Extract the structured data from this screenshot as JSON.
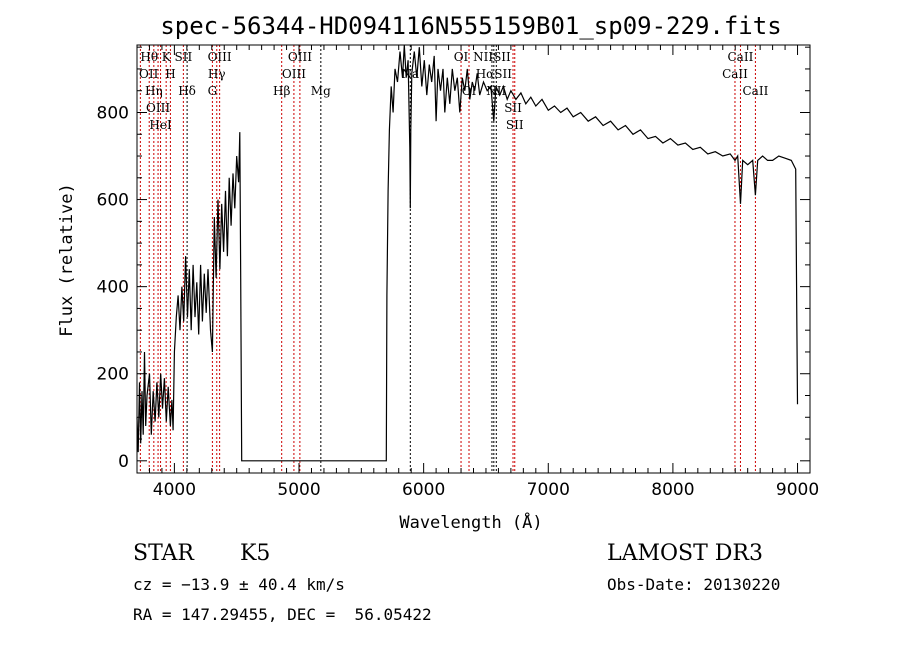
{
  "chart_data": {
    "type": "line",
    "title": "spec-56344-HD094116N555159B01_sp09-229.fits",
    "xlabel": "Wavelength (Å)",
    "ylabel": "Flux (relative)",
    "xlim": [
      3700,
      9100
    ],
    "ylim": [
      -28,
      955
    ],
    "xticks": [
      4000,
      5000,
      6000,
      7000,
      8000,
      9000
    ],
    "yticks": [
      0,
      200,
      400,
      600,
      800
    ],
    "grid": false,
    "series": [
      {
        "name": "spectrum",
        "points": [
          [
            3700,
            100
          ],
          [
            3710,
            20
          ],
          [
            3720,
            180
          ],
          [
            3730,
            40
          ],
          [
            3740,
            160
          ],
          [
            3750,
            60
          ],
          [
            3760,
            250
          ],
          [
            3770,
            80
          ],
          [
            3780,
            150
          ],
          [
            3800,
            200
          ],
          [
            3815,
            60
          ],
          [
            3830,
            160
          ],
          [
            3845,
            90
          ],
          [
            3860,
            180
          ],
          [
            3875,
            100
          ],
          [
            3890,
            200
          ],
          [
            3905,
            120
          ],
          [
            3920,
            190
          ],
          [
            3935,
            90
          ],
          [
            3950,
            170
          ],
          [
            3968,
            80
          ],
          [
            3980,
            140
          ],
          [
            3990,
            70
          ],
          [
            4000,
            250
          ],
          [
            4015,
            330
          ],
          [
            4030,
            380
          ],
          [
            4045,
            300
          ],
          [
            4060,
            400
          ],
          [
            4075,
            320
          ],
          [
            4090,
            470
          ],
          [
            4105,
            330
          ],
          [
            4120,
            440
          ],
          [
            4135,
            300
          ],
          [
            4150,
            450
          ],
          [
            4165,
            330
          ],
          [
            4180,
            410
          ],
          [
            4195,
            290
          ],
          [
            4210,
            450
          ],
          [
            4225,
            320
          ],
          [
            4240,
            430
          ],
          [
            4255,
            340
          ],
          [
            4270,
            440
          ],
          [
            4290,
            300
          ],
          [
            4305,
            250
          ],
          [
            4320,
            560
          ],
          [
            4335,
            420
          ],
          [
            4350,
            600
          ],
          [
            4365,
            440
          ],
          [
            4380,
            590
          ],
          [
            4395,
            480
          ],
          [
            4410,
            620
          ],
          [
            4425,
            470
          ],
          [
            4440,
            650
          ],
          [
            4455,
            540
          ],
          [
            4470,
            660
          ],
          [
            4485,
            580
          ],
          [
            4500,
            700
          ],
          [
            4515,
            640
          ],
          [
            4525,
            755
          ],
          [
            4532,
            420
          ],
          [
            4540,
            0
          ],
          [
            5700,
            0
          ],
          [
            5705,
            380
          ],
          [
            5715,
            620
          ],
          [
            5725,
            760
          ],
          [
            5740,
            860
          ],
          [
            5755,
            800
          ],
          [
            5770,
            900
          ],
          [
            5790,
            870
          ],
          [
            5810,
            940
          ],
          [
            5830,
            880
          ],
          [
            5845,
            955
          ],
          [
            5860,
            880
          ],
          [
            5875,
            920
          ],
          [
            5889,
            720
          ],
          [
            5893,
            580
          ],
          [
            5897,
            760
          ],
          [
            5905,
            890
          ],
          [
            5925,
            940
          ],
          [
            5945,
            880
          ],
          [
            5965,
            950
          ],
          [
            5985,
            860
          ],
          [
            6005,
            920
          ],
          [
            6025,
            840
          ],
          [
            6045,
            910
          ],
          [
            6065,
            870
          ],
          [
            6085,
            930
          ],
          [
            6100,
            780
          ],
          [
            6115,
            900
          ],
          [
            6135,
            850
          ],
          [
            6155,
            900
          ],
          [
            6170,
            800
          ],
          [
            6190,
            880
          ],
          [
            6210,
            820
          ],
          [
            6230,
            900
          ],
          [
            6250,
            850
          ],
          [
            6270,
            880
          ],
          [
            6290,
            800
          ],
          [
            6310,
            880
          ],
          [
            6330,
            850
          ],
          [
            6350,
            900
          ],
          [
            6370,
            830
          ],
          [
            6390,
            870
          ],
          [
            6410,
            850
          ],
          [
            6430,
            890
          ],
          [
            6450,
            840
          ],
          [
            6480,
            870
          ],
          [
            6510,
            850
          ],
          [
            6540,
            860
          ],
          [
            6563,
            780
          ],
          [
            6580,
            860
          ],
          [
            6610,
            840
          ],
          [
            6640,
            860
          ],
          [
            6670,
            830
          ],
          [
            6700,
            850
          ],
          [
            6740,
            830
          ],
          [
            6780,
            845
          ],
          [
            6820,
            820
          ],
          [
            6860,
            835
          ],
          [
            6900,
            815
          ],
          [
            6950,
            830
          ],
          [
            7000,
            805
          ],
          [
            7050,
            815
          ],
          [
            7100,
            800
          ],
          [
            7150,
            810
          ],
          [
            7200,
            790
          ],
          [
            7260,
            800
          ],
          [
            7320,
            780
          ],
          [
            7380,
            790
          ],
          [
            7440,
            770
          ],
          [
            7500,
            780
          ],
          [
            7560,
            760
          ],
          [
            7620,
            770
          ],
          [
            7680,
            750
          ],
          [
            7740,
            760
          ],
          [
            7800,
            740
          ],
          [
            7860,
            745
          ],
          [
            7920,
            730
          ],
          [
            7980,
            740
          ],
          [
            8040,
            725
          ],
          [
            8100,
            730
          ],
          [
            8160,
            715
          ],
          [
            8220,
            720
          ],
          [
            8280,
            705
          ],
          [
            8340,
            710
          ],
          [
            8400,
            700
          ],
          [
            8460,
            705
          ],
          [
            8498,
            690
          ],
          [
            8520,
            700
          ],
          [
            8542,
            590
          ],
          [
            8560,
            690
          ],
          [
            8600,
            680
          ],
          [
            8640,
            690
          ],
          [
            8662,
            610
          ],
          [
            8680,
            690
          ],
          [
            8720,
            700
          ],
          [
            8760,
            690
          ],
          [
            8800,
            690
          ],
          [
            8850,
            700
          ],
          [
            8900,
            695
          ],
          [
            8950,
            690
          ],
          [
            8985,
            670
          ],
          [
            8995,
            300
          ],
          [
            9000,
            130
          ]
        ]
      }
    ],
    "lines": [
      {
        "label": "Hθ",
        "w": 3798,
        "row": 1,
        "color": "#cc0000"
      },
      {
        "label": "K",
        "w": 3934,
        "row": 1,
        "color": "#cc0000"
      },
      {
        "label": "Hδ",
        "w": 4102,
        "row": 1,
        "color": "#000000"
      },
      {
        "label": "OIII",
        "w": 4363,
        "row": 1,
        "color": "#cc0000"
      },
      {
        "label": "OIII",
        "w": 5007,
        "row": 1,
        "color": "#cc0000"
      },
      {
        "label": "OI",
        "w": 6300,
        "row": 1,
        "color": "#cc0000"
      },
      {
        "label": "HαSII",
        "w": 6563,
        "row": 1,
        "color": "#000000"
      },
      {
        "label": "CaII",
        "w": 8542,
        "row": 1,
        "color": "#cc0000"
      },
      {
        "label": "OII",
        "w": 3727,
        "row": 2,
        "color": "#cc0000"
      },
      {
        "label": "HeI",
        "w": 3889,
        "row": 2,
        "color": "#cc0000"
      },
      {
        "label": "SII",
        "w": 4072,
        "row": 2,
        "color": "#cc0000"
      },
      {
        "label": "Hγ",
        "w": 4340,
        "row": 2,
        "color": "#cc0000"
      },
      {
        "label": "OIII",
        "w": 4959,
        "row": 2,
        "color": "#cc0000"
      },
      {
        "label": "Na",
        "w": 5893,
        "row": 2,
        "color": "#000000"
      },
      {
        "label": "NII",
        "w": 6583,
        "row": 2,
        "color": "#000000"
      },
      {
        "label": "CaII",
        "w": 8498,
        "row": 2,
        "color": "#cc0000"
      },
      {
        "label": "OIII",
        "w": 3869,
        "row": 3,
        "color": "#cc0000"
      },
      {
        "label": "Hη",
        "w": 3835,
        "row": 3,
        "color": "#cc0000"
      },
      {
        "label": "H",
        "w": 3968,
        "row": 3,
        "color": "#cc0000"
      },
      {
        "label": "G",
        "w": 4305,
        "row": 3,
        "color": "#cc0000"
      },
      {
        "label": "Hβ",
        "w": 4861,
        "row": 3,
        "color": "#cc0000"
      },
      {
        "label": "Mg",
        "w": 5175,
        "row": 3,
        "color": "#000000"
      },
      {
        "label": "OI",
        "w": 6364,
        "row": 3,
        "color": "#cc0000"
      },
      {
        "label": "NIISII",
        "w": 6548,
        "row": 3,
        "color": "#000000"
      },
      {
        "label": "SII",
        "w": 6731,
        "row": 2,
        "color": "#cc0000"
      },
      {
        "label": "SII",
        "w": 6717,
        "row": 3,
        "color": "#cc0000"
      },
      {
        "label": "CaII",
        "w": 8662,
        "row": 3,
        "color": "#cc0000"
      }
    ]
  },
  "info": {
    "object_class": "STAR",
    "subclass": "K5",
    "survey": "LAMOST DR3",
    "cz": "cz = −13.9 ± 40.4 km/s",
    "obs_date": "Obs-Date: 20130220",
    "coords": "RA = 147.29455, DEC =  56.05422"
  }
}
